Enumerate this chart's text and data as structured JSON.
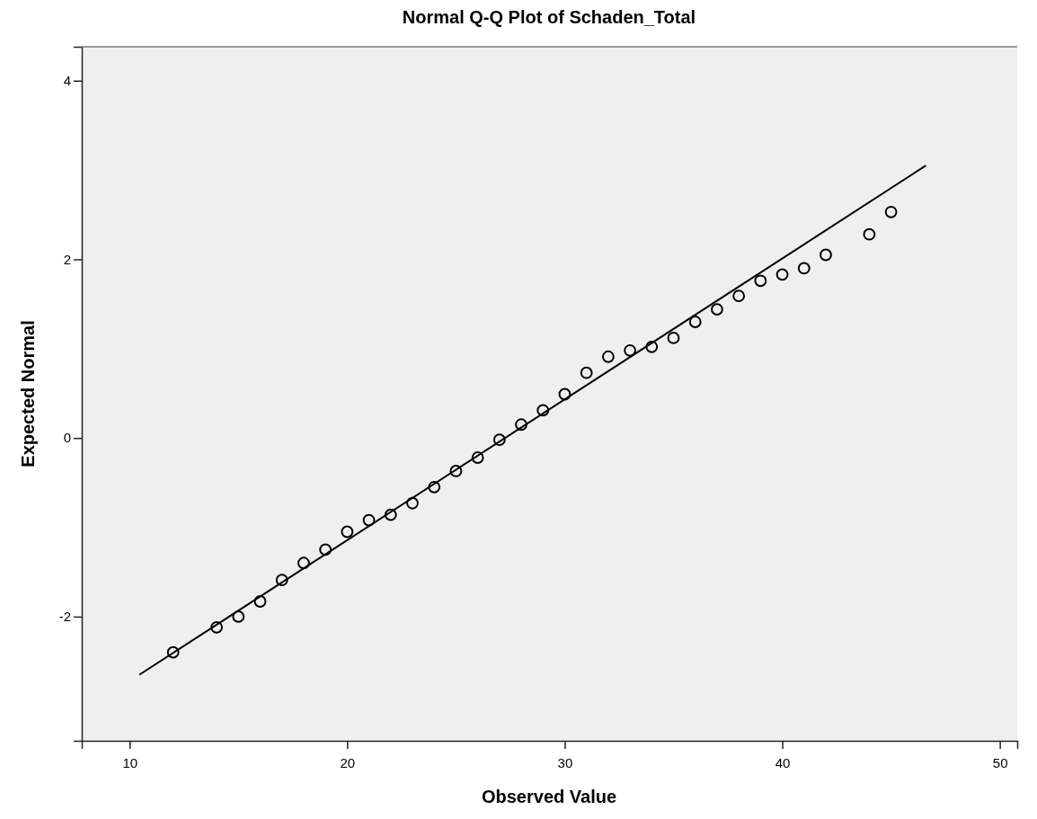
{
  "chart_data": {
    "type": "scatter",
    "title": "Normal Q-Q Plot of Schaden_Total",
    "xlabel": "Observed Value",
    "ylabel": "Expected Normal",
    "xlim": [
      7.8,
      50.8
    ],
    "ylim": [
      -3.39,
      4.38
    ],
    "xticks": [
      10,
      20,
      30,
      40,
      50
    ],
    "yticks": [
      4,
      2,
      0,
      -2
    ],
    "grid": false,
    "series": [
      {
        "marker": "circle",
        "color": "#000000",
        "x": [
          12,
          14,
          15,
          16,
          17,
          18,
          19,
          20,
          21,
          22,
          23,
          24,
          25,
          26,
          27,
          28,
          29,
          30,
          31,
          32,
          33,
          34,
          35,
          36,
          37,
          38,
          39,
          40,
          41,
          42,
          44,
          45
        ],
        "values": [
          -2.4,
          -2.12,
          -2.0,
          -1.83,
          -1.59,
          -1.4,
          -1.25,
          -1.05,
          -0.92,
          -0.86,
          -0.73,
          -0.55,
          -0.37,
          -0.22,
          -0.02,
          0.15,
          0.31,
          0.49,
          0.73,
          0.91,
          0.98,
          1.02,
          1.12,
          1.3,
          1.44,
          1.59,
          1.76,
          1.83,
          1.9,
          2.05,
          2.28,
          2.53
        ]
      },
      {
        "type": "line",
        "marker": "none",
        "color": "#000000",
        "x": [
          10.45,
          46.6
        ],
        "values": [
          -2.65,
          3.05
        ]
      }
    ]
  }
}
